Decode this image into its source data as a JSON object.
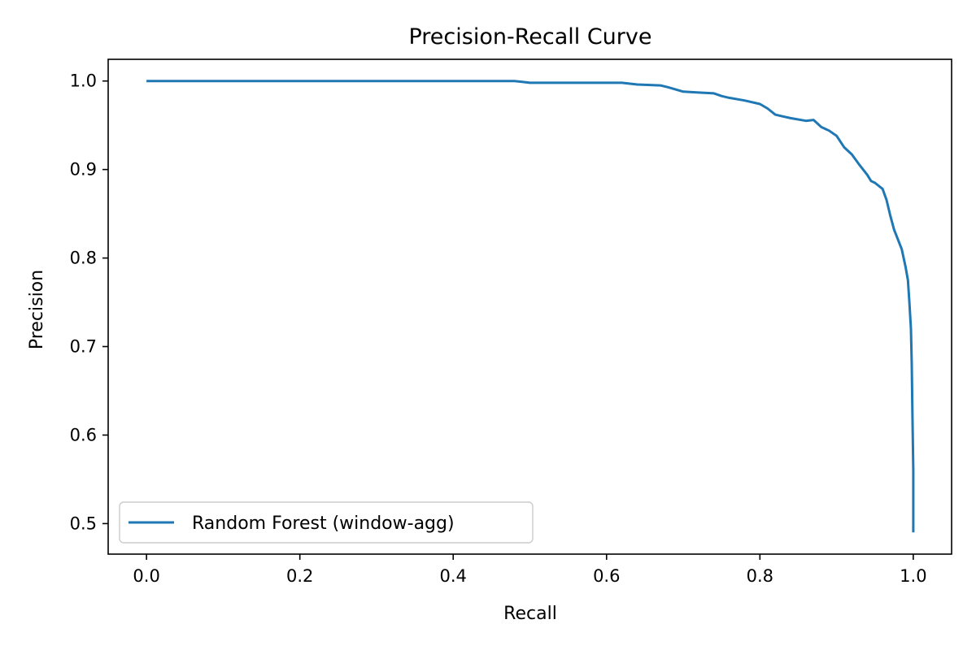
{
  "chart_data": {
    "type": "line",
    "title": "Precision-Recall Curve",
    "xlabel": "Recall",
    "ylabel": "Precision",
    "xlim": [
      -0.05,
      1.05
    ],
    "ylim": [
      0.4655,
      1.0245
    ],
    "xticks": [
      "0.0",
      "0.2",
      "0.4",
      "0.6",
      "0.8",
      "1.0"
    ],
    "yticks": [
      "0.5",
      "0.6",
      "0.7",
      "0.8",
      "0.9",
      "1.0"
    ],
    "grid": false,
    "legend_position": "lower-left",
    "series": [
      {
        "name": "Random Forest (window-agg)",
        "color": "#1f77b4",
        "x": [
          0.0,
          0.1,
          0.2,
          0.3,
          0.4,
          0.48,
          0.49,
          0.5,
          0.55,
          0.6,
          0.62,
          0.64,
          0.67,
          0.68,
          0.7,
          0.72,
          0.74,
          0.75,
          0.76,
          0.78,
          0.8,
          0.81,
          0.82,
          0.83,
          0.84,
          0.86,
          0.87,
          0.88,
          0.89,
          0.9,
          0.91,
          0.92,
          0.93,
          0.94,
          0.945,
          0.95,
          0.96,
          0.965,
          0.97,
          0.975,
          0.98,
          0.985,
          0.99,
          0.993,
          0.995,
          0.997,
          0.998,
          0.999,
          1.0,
          1.0,
          1.0
        ],
        "y": [
          1.0,
          1.0,
          1.0,
          1.0,
          1.0,
          1.0,
          0.999,
          0.998,
          0.998,
          0.998,
          0.998,
          0.996,
          0.995,
          0.993,
          0.988,
          0.987,
          0.986,
          0.983,
          0.981,
          0.978,
          0.974,
          0.969,
          0.962,
          0.96,
          0.958,
          0.955,
          0.956,
          0.948,
          0.944,
          0.938,
          0.925,
          0.917,
          0.905,
          0.894,
          0.887,
          0.885,
          0.878,
          0.866,
          0.848,
          0.832,
          0.821,
          0.81,
          0.79,
          0.775,
          0.75,
          0.72,
          0.68,
          0.62,
          0.56,
          0.52,
          0.49
        ]
      }
    ]
  }
}
